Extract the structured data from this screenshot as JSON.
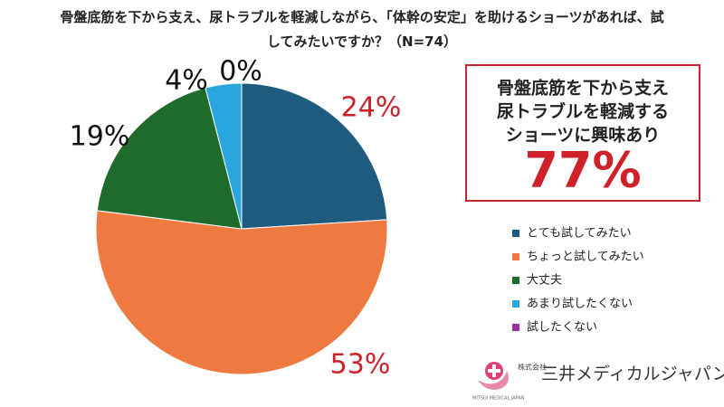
{
  "chart_data": {
    "type": "pie",
    "title": "骨盤底筋を下から支え、尿トラブルを軽減しながら、「体幹の安定」を助けるショーツがあれば、試してみたいですか？（N=74）",
    "categories": [
      "とても試してみたい",
      "ちょっと試してみたい",
      "大丈夫",
      "あまり試したくない",
      "試したくない"
    ],
    "values": [
      24,
      53,
      19,
      4,
      0
    ],
    "value_labels": [
      "24%",
      "53%",
      "19%",
      "4%",
      "0%"
    ],
    "value_label_colors": [
      "#d0202a",
      "#d0202a",
      "#111111",
      "#111111",
      "#111111"
    ],
    "colors": [
      "#1f5b7e",
      "#ef7a41",
      "#1e6b2c",
      "#2aa6df",
      "#9b2fa0"
    ],
    "callout": {
      "lines": [
        "骨盤底筋を下から支え",
        "尿トラブルを軽減する",
        "ショーツに興味あり"
      ],
      "label": "77%"
    },
    "logo": {
      "company_type": "株式会社",
      "name": "三井メディカルジャパン",
      "english": "MITSUI MEDICAL JAPAN"
    }
  }
}
